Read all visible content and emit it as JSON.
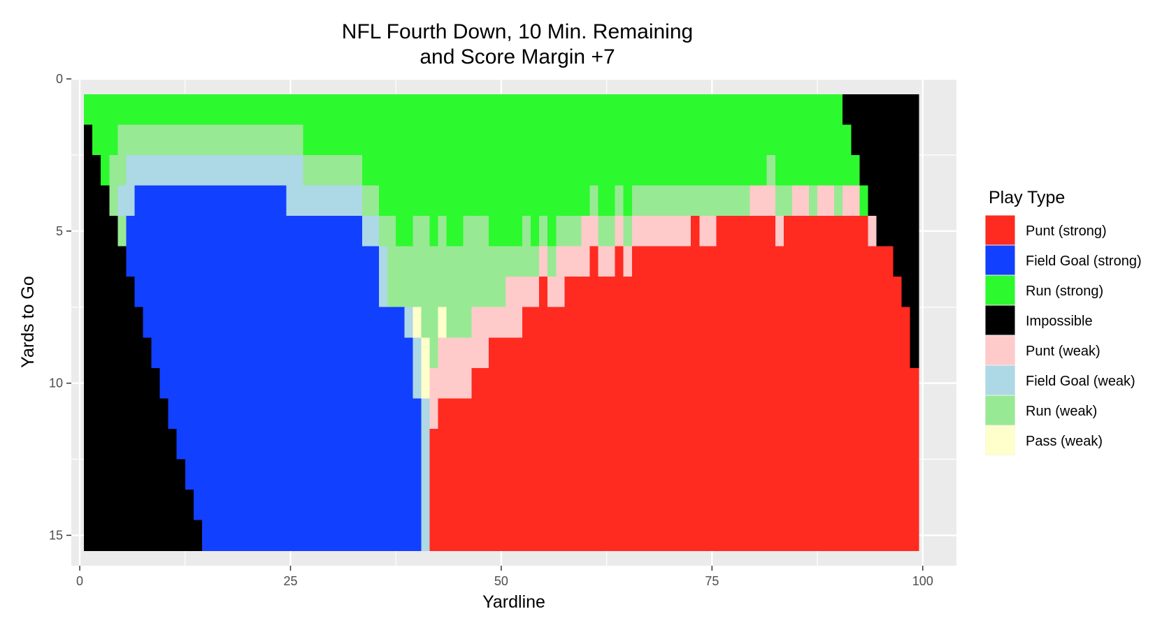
{
  "chart_data": {
    "type": "heatmap",
    "title_line1": "NFL Fourth Down, 10 Min. Remaining",
    "title_line2": "and Score Margin +7",
    "xlabel": "Yardline",
    "ylabel": "Yards to Go",
    "xlim": [
      -1,
      104
    ],
    "ylim": [
      0,
      16
    ],
    "y_reversed": true,
    "x_ticks": [
      0,
      25,
      50,
      75,
      100
    ],
    "x_tick_labels": [
      "0",
      "25",
      "50",
      "75",
      "100"
    ],
    "y_ticks": [
      0,
      5,
      10,
      15
    ],
    "y_tick_labels": [
      "0",
      "5",
      "10",
      "15"
    ],
    "grid": true,
    "legend_position": "right",
    "legend": {
      "title": "Play Type",
      "entries": [
        {
          "key": "PS",
          "label": "Punt (strong)",
          "color": "#FF2A20"
        },
        {
          "key": "FS",
          "label": "Field Goal (strong)",
          "color": "#1240FF"
        },
        {
          "key": "RS",
          "label": "Run (strong)",
          "color": "#2DF92F"
        },
        {
          "key": "IM",
          "label": "Impossible",
          "color": "#000000"
        },
        {
          "key": "PW",
          "label": "Punt (weak)",
          "color": "#FFCACA"
        },
        {
          "key": "FW",
          "label": "Field Goal (weak)",
          "color": "#ADD8E6"
        },
        {
          "key": "RW",
          "label": "Run (weak)",
          "color": "#98E994"
        },
        {
          "key": "AW",
          "label": "Pass (weak)",
          "color": "#FFFFCC"
        }
      ]
    },
    "rows": [
      {
        "ytg": 1,
        "runs": [
          [
            "RS",
            1,
            90
          ],
          [
            "IM",
            91,
            99
          ]
        ]
      },
      {
        "ytg": 2,
        "runs": [
          [
            "IM",
            1,
            1
          ],
          [
            "RS",
            2,
            4
          ],
          [
            "RW",
            5,
            26
          ],
          [
            "RS",
            27,
            91
          ],
          [
            "IM",
            92,
            99
          ]
        ]
      },
      {
        "ytg": 3,
        "runs": [
          [
            "IM",
            1,
            2
          ],
          [
            "RS",
            3,
            3
          ],
          [
            "RW",
            4,
            5
          ],
          [
            "FW",
            6,
            26
          ],
          [
            "RW",
            27,
            33
          ],
          [
            "RS",
            34,
            81
          ],
          [
            "RW",
            82,
            82
          ],
          [
            "RS",
            83,
            92
          ],
          [
            "IM",
            93,
            99
          ]
        ]
      },
      {
        "ytg": 4,
        "runs": [
          [
            "IM",
            1,
            3
          ],
          [
            "RW",
            4,
            4
          ],
          [
            "FW",
            5,
            6
          ],
          [
            "FS",
            7,
            24
          ],
          [
            "FW",
            25,
            33
          ],
          [
            "RW",
            34,
            35
          ],
          [
            "RS",
            36,
            60
          ],
          [
            "RW",
            61,
            61
          ],
          [
            "RS",
            62,
            63
          ],
          [
            "RW",
            64,
            64
          ],
          [
            "RS",
            65,
            65
          ],
          [
            "RW",
            66,
            79
          ],
          [
            "PW",
            80,
            82
          ],
          [
            "RW",
            83,
            84
          ],
          [
            "PW",
            85,
            86
          ],
          [
            "RW",
            87,
            87
          ],
          [
            "PW",
            88,
            89
          ],
          [
            "RW",
            90,
            90
          ],
          [
            "PW",
            91,
            92
          ],
          [
            "RS",
            93,
            93
          ],
          [
            "IM",
            94,
            99
          ]
        ]
      },
      {
        "ytg": 5,
        "runs": [
          [
            "IM",
            1,
            4
          ],
          [
            "RW",
            5,
            5
          ],
          [
            "FS",
            6,
            33
          ],
          [
            "FW",
            34,
            35
          ],
          [
            "RW",
            36,
            37
          ],
          [
            "RS",
            38,
            39
          ],
          [
            "RW",
            40,
            41
          ],
          [
            "RS",
            42,
            42
          ],
          [
            "RW",
            43,
            43
          ],
          [
            "RS",
            44,
            45
          ],
          [
            "RW",
            46,
            48
          ],
          [
            "RS",
            49,
            52
          ],
          [
            "RW",
            53,
            53
          ],
          [
            "RS",
            54,
            54
          ],
          [
            "RW",
            55,
            55
          ],
          [
            "RS",
            56,
            56
          ],
          [
            "RW",
            57,
            59
          ],
          [
            "PW",
            60,
            61
          ],
          [
            "RW",
            62,
            63
          ],
          [
            "PW",
            64,
            64
          ],
          [
            "RW",
            65,
            65
          ],
          [
            "PW",
            66,
            72
          ],
          [
            "PS",
            73,
            73
          ],
          [
            "PW",
            74,
            75
          ],
          [
            "PS",
            76,
            82
          ],
          [
            "PW",
            83,
            83
          ],
          [
            "PS",
            84,
            93
          ],
          [
            "PW",
            94,
            94
          ],
          [
            "IM",
            95,
            99
          ]
        ]
      },
      {
        "ytg": 6,
        "runs": [
          [
            "IM",
            1,
            5
          ],
          [
            "FS",
            6,
            35
          ],
          [
            "FW",
            36,
            36
          ],
          [
            "RW",
            37,
            54
          ],
          [
            "PW",
            55,
            55
          ],
          [
            "RW",
            56,
            56
          ],
          [
            "PW",
            57,
            60
          ],
          [
            "PS",
            61,
            61
          ],
          [
            "PW",
            62,
            63
          ],
          [
            "PS",
            64,
            64
          ],
          [
            "PW",
            65,
            65
          ],
          [
            "PS",
            66,
            96
          ],
          [
            "IM",
            97,
            99
          ]
        ]
      },
      {
        "ytg": 7,
        "runs": [
          [
            "IM",
            1,
            6
          ],
          [
            "FS",
            7,
            35
          ],
          [
            "FW",
            36,
            36
          ],
          [
            "RW",
            37,
            50
          ],
          [
            "PW",
            51,
            54
          ],
          [
            "PS",
            55,
            55
          ],
          [
            "PW",
            56,
            57
          ],
          [
            "PS",
            58,
            97
          ],
          [
            "IM",
            98,
            99
          ]
        ]
      },
      {
        "ytg": 8,
        "runs": [
          [
            "IM",
            1,
            7
          ],
          [
            "FS",
            8,
            38
          ],
          [
            "FW",
            39,
            39
          ],
          [
            "AW",
            40,
            40
          ],
          [
            "RW",
            41,
            42
          ],
          [
            "AW",
            43,
            43
          ],
          [
            "RW",
            44,
            46
          ],
          [
            "PW",
            47,
            52
          ],
          [
            "PS",
            53,
            98
          ],
          [
            "IM",
            99,
            99
          ]
        ]
      },
      {
        "ytg": 9,
        "runs": [
          [
            "IM",
            1,
            8
          ],
          [
            "FS",
            9,
            39
          ],
          [
            "FW",
            40,
            40
          ],
          [
            "AW",
            41,
            41
          ],
          [
            "RW",
            42,
            42
          ],
          [
            "PW",
            43,
            48
          ],
          [
            "PS",
            49,
            98
          ],
          [
            "IM",
            99,
            99
          ]
        ]
      },
      {
        "ytg": 10,
        "runs": [
          [
            "IM",
            1,
            9
          ],
          [
            "FS",
            10,
            39
          ],
          [
            "FW",
            40,
            40
          ],
          [
            "AW",
            41,
            41
          ],
          [
            "PW",
            42,
            46
          ],
          [
            "PS",
            47,
            99
          ]
        ]
      },
      {
        "ytg": 11,
        "runs": [
          [
            "IM",
            1,
            10
          ],
          [
            "FS",
            11,
            40
          ],
          [
            "FW",
            41,
            41
          ],
          [
            "PW",
            42,
            42
          ],
          [
            "PS",
            43,
            99
          ]
        ]
      },
      {
        "ytg": 12,
        "runs": [
          [
            "IM",
            1,
            11
          ],
          [
            "FS",
            12,
            40
          ],
          [
            "FW",
            41,
            41
          ],
          [
            "PS",
            42,
            99
          ]
        ]
      },
      {
        "ytg": 13,
        "runs": [
          [
            "IM",
            1,
            12
          ],
          [
            "FS",
            13,
            40
          ],
          [
            "FW",
            41,
            41
          ],
          [
            "PS",
            42,
            99
          ]
        ]
      },
      {
        "ytg": 14,
        "runs": [
          [
            "IM",
            1,
            13
          ],
          [
            "FS",
            14,
            40
          ],
          [
            "FW",
            41,
            41
          ],
          [
            "PS",
            42,
            99
          ]
        ]
      },
      {
        "ytg": 15,
        "runs": [
          [
            "IM",
            1,
            14
          ],
          [
            "FS",
            15,
            40
          ],
          [
            "FW",
            41,
            41
          ],
          [
            "PS",
            42,
            99
          ]
        ]
      }
    ]
  }
}
